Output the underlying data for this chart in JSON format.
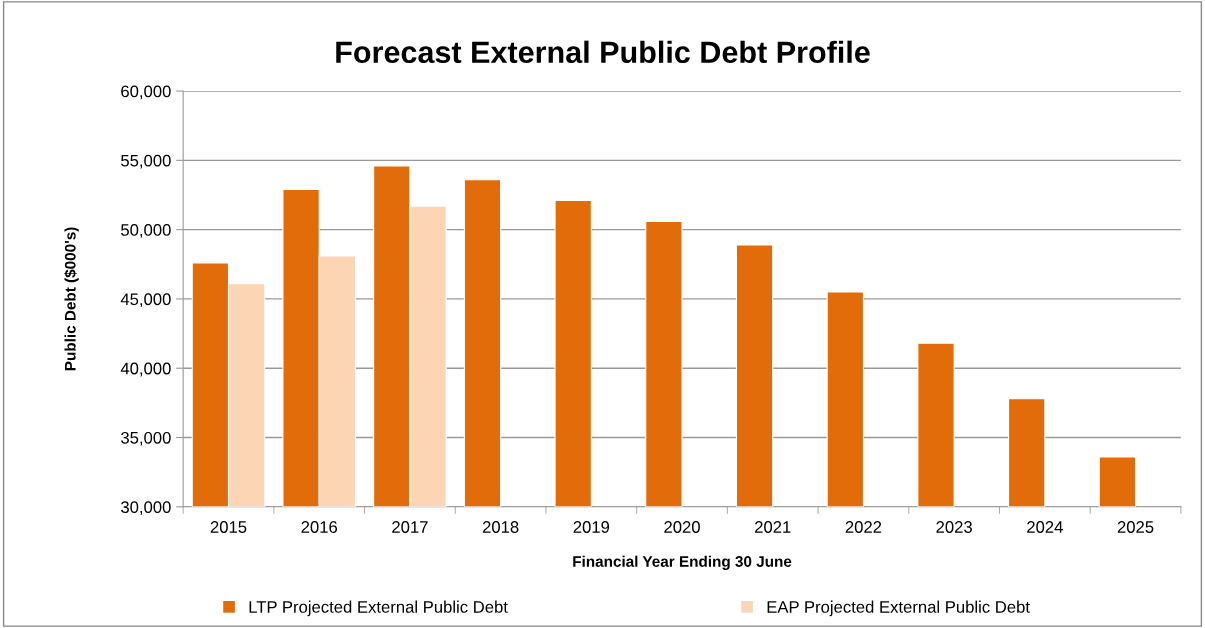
{
  "chart_data": {
    "type": "bar",
    "title": "Forecast External Public Debt Profile",
    "xlabel": "Financial Year Ending 30 June",
    "ylabel": "Public Debt ($000's)",
    "categories": [
      "2015",
      "2016",
      "2017",
      "2018",
      "2019",
      "2020",
      "2021",
      "2022",
      "2023",
      "2024",
      "2025"
    ],
    "series": [
      {
        "name": "LTP Projected External Public Debt",
        "color": "#e36c0a",
        "values": [
          47600,
          52900,
          54600,
          53600,
          52100,
          50600,
          48900,
          45500,
          41800,
          37800,
          33600
        ]
      },
      {
        "name": "EAP Projected External Public Debt",
        "color": "#fcd5b5",
        "values": [
          46100,
          48100,
          51700,
          null,
          null,
          null,
          null,
          null,
          null,
          null,
          null
        ]
      }
    ],
    "ylim": [
      30000,
      60000
    ],
    "yticks": [
      {
        "value": 30000,
        "label": "30,000"
      },
      {
        "value": 35000,
        "label": "35,000"
      },
      {
        "value": 40000,
        "label": "40,000"
      },
      {
        "value": 45000,
        "label": "45,000"
      },
      {
        "value": 50000,
        "label": "50,000"
      },
      {
        "value": 55000,
        "label": "55,000"
      },
      {
        "value": 60000,
        "label": "60,000"
      }
    ],
    "grid": "y",
    "legend": "bottom"
  }
}
